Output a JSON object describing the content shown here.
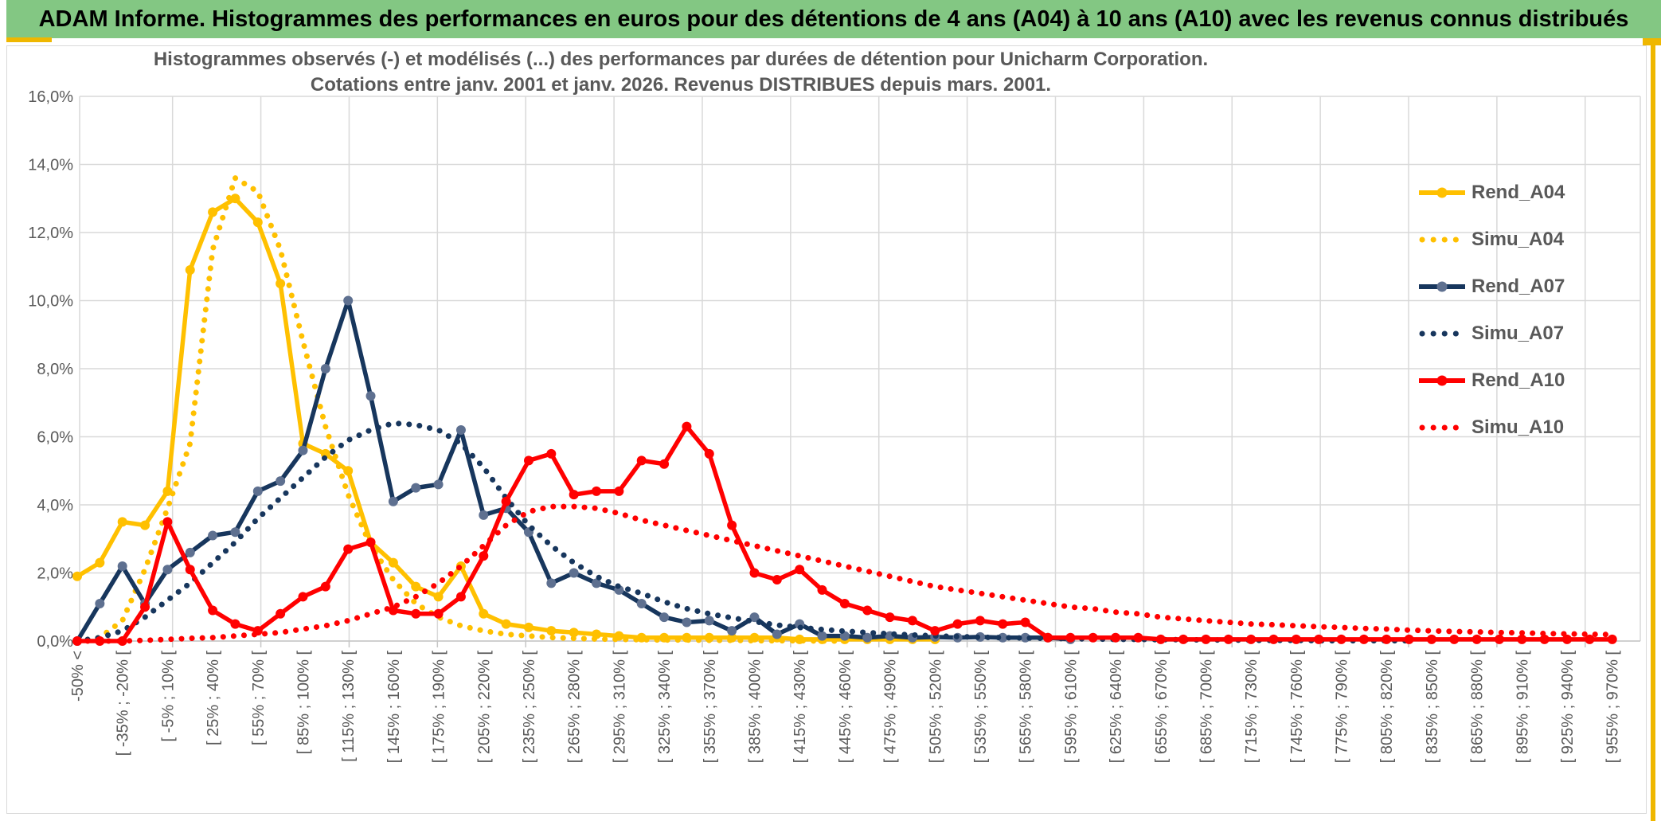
{
  "header": {
    "title": "ADAM Informe. Histogrammes des performances en euros pour des détentions de 4 ans (A04) à 10 ans (A10) avec les revenus connus distribués"
  },
  "chart": {
    "title_line1": "Histogrammes observés (-) et modélisés (...) des performances par durées de détention pour Unicharm Corporation.",
    "title_line2": "Cotations entre janv. 2001 et janv. 2026. Revenus DISTRIBUES depuis mars. 2001."
  },
  "colors": {
    "header_green": "#83C783",
    "accent_gold": "#EFB700",
    "grid": "#D9D9D9",
    "axis_line": "#C6C6C6",
    "axis_text": "#595959",
    "yellow": "#FFC000",
    "navy": "#17365D",
    "navy_marker": "#5E7090",
    "red": "#FF0000"
  },
  "chart_data": {
    "type": "line",
    "title": "Histogrammes observés (-) et modélisés (...) des performances par durées de détention pour Unicharm Corporation. Cotations entre janv. 2001 et janv. 2026. Revenus DISTRIBUES depuis mars. 2001.",
    "xlabel": "",
    "ylabel": "",
    "ylim": [
      0,
      16
    ],
    "ytick_step": 2,
    "yticks": [
      "0,0%",
      "2,0%",
      "4,0%",
      "6,0%",
      "8,0%",
      "10,0%",
      "12,0%",
      "14,0%",
      "16,0%"
    ],
    "grid": true,
    "legend_position": "right-inside",
    "n_points": 69,
    "x_label_every": 2,
    "categories": [
      "-50% <",
      "[ -35% ; -20% [",
      "[ -5% ; 10% [",
      "[ 25% ; 40% [",
      "[ 55% ; 70% [",
      "[ 85% ; 100% [",
      "[ 115% ; 130% [",
      "[ 145% ; 160% [",
      "[ 175% ; 190% [",
      "[ 205% ; 220% [",
      "[ 235% ; 250% [",
      "[ 265% ; 280% [",
      "[ 295% ; 310% [",
      "[ 325% ; 340% [",
      "[ 355% ; 370% [",
      "[ 385% ; 400% [",
      "[ 415% ; 430% [",
      "[ 445% ; 460% [",
      "[ 475% ; 490% [",
      "[ 505% ; 520% [",
      "[ 535% ; 550% [",
      "[ 565% ; 580% [",
      "[ 595% ; 610% [",
      "[ 625% ; 640% [",
      "[ 655% ; 670% [",
      "[ 685% ; 700% [",
      "[ 715% ; 730% [",
      "[ 745% ; 760% [",
      "[ 775% ; 790% [",
      "[ 805% ; 820% [",
      "[ 835% ; 850% [",
      "[ 865% ; 880% [",
      "[ 895% ; 910% [",
      "[ 925% ; 940% [",
      "[ 955% ; 970% ["
    ],
    "series": [
      {
        "name": "Rend_A04",
        "style": "solid",
        "color": "#FFC000",
        "marker_color": "#FFC000",
        "values": [
          1.9,
          2.3,
          3.5,
          3.4,
          4.4,
          10.9,
          12.6,
          13.0,
          12.3,
          10.5,
          5.8,
          5.5,
          5.0,
          2.9,
          2.3,
          1.6,
          1.3,
          2.2,
          0.8,
          0.5,
          0.4,
          0.3,
          0.25,
          0.2,
          0.15,
          0.1,
          0.1,
          0.1,
          0.1,
          0.1,
          0.1,
          0.1,
          0.05,
          0.05,
          0.05,
          0.05,
          0.05,
          0.05,
          0.05,
          null,
          null,
          null,
          null,
          null,
          null,
          null,
          null,
          null,
          null,
          null,
          null,
          null,
          null,
          null,
          null,
          null,
          null,
          null,
          null,
          null,
          null,
          null,
          null,
          null,
          null,
          null,
          null,
          null,
          null
        ]
      },
      {
        "name": "Simu_A04",
        "style": "dotted",
        "color": "#FFC000",
        "values": [
          0.0,
          0.1,
          0.6,
          2.1,
          3.9,
          5.8,
          11.5,
          13.6,
          13.2,
          11.5,
          8.8,
          6.3,
          4.3,
          2.8,
          1.8,
          1.1,
          0.7,
          0.45,
          0.3,
          0.2,
          0.15,
          0.1,
          0.08,
          0.06,
          0.05,
          0.04,
          0.03,
          0.03,
          0.02,
          0.02,
          0.01,
          0.01,
          0.01,
          0.0,
          0.0,
          null,
          null,
          null,
          null,
          null,
          null,
          null,
          null,
          null,
          null,
          null,
          null,
          null,
          null,
          null,
          null,
          null,
          null,
          null,
          null,
          null,
          null,
          null,
          null,
          null,
          null,
          null,
          null,
          null,
          null,
          null,
          null,
          null,
          null
        ]
      },
      {
        "name": "Rend_A07",
        "style": "solid",
        "color": "#17365D",
        "marker_color": "#5E7090",
        "values": [
          0.0,
          1.1,
          2.2,
          1.1,
          2.1,
          2.6,
          3.1,
          3.2,
          4.4,
          4.7,
          5.6,
          8.0,
          10.0,
          7.2,
          4.1,
          4.5,
          4.6,
          6.2,
          3.7,
          3.9,
          3.2,
          1.7,
          2.0,
          1.7,
          1.5,
          1.1,
          0.7,
          0.55,
          0.6,
          0.3,
          0.7,
          0.2,
          0.5,
          0.15,
          0.15,
          0.1,
          0.15,
          0.1,
          0.12,
          0.1,
          0.12,
          0.1,
          0.1,
          0.1,
          0.05,
          null,
          null,
          null,
          null,
          null,
          null,
          null,
          null,
          null,
          null,
          null,
          null,
          null,
          null,
          null,
          null,
          null,
          null,
          null,
          null,
          null,
          null,
          null,
          null
        ]
      },
      {
        "name": "Simu_A07",
        "style": "dotted",
        "color": "#17365D",
        "values": [
          0.0,
          0.1,
          0.3,
          0.7,
          1.2,
          1.7,
          2.3,
          2.9,
          3.6,
          4.2,
          4.8,
          5.4,
          5.9,
          6.2,
          6.4,
          6.35,
          6.2,
          5.8,
          5.1,
          4.2,
          3.4,
          2.8,
          2.3,
          1.9,
          1.6,
          1.4,
          1.15,
          0.95,
          0.8,
          0.68,
          0.57,
          0.47,
          0.4,
          0.34,
          0.29,
          0.25,
          0.21,
          0.18,
          0.15,
          0.13,
          0.11,
          0.1,
          0.09,
          0.08,
          0.07,
          0.06,
          0.05,
          0.05,
          0.04,
          0.04,
          0.03,
          0.03,
          0.02,
          0.02,
          0.02,
          0.01,
          0.01,
          0.01,
          0.01,
          0.01,
          null,
          null,
          null,
          null,
          null,
          null,
          null,
          null,
          null
        ]
      },
      {
        "name": "Rend_A10",
        "style": "solid",
        "color": "#FF0000",
        "marker_color": "#FF0000",
        "values": [
          0.0,
          0.0,
          0.0,
          1.0,
          3.5,
          2.1,
          0.9,
          0.5,
          0.3,
          0.8,
          1.3,
          1.6,
          2.7,
          2.9,
          0.9,
          0.8,
          0.8,
          1.3,
          2.5,
          4.1,
          5.3,
          5.5,
          4.3,
          4.4,
          4.4,
          5.3,
          5.2,
          6.3,
          5.5,
          3.4,
          2.0,
          1.8,
          2.1,
          1.5,
          1.1,
          0.9,
          0.7,
          0.6,
          0.3,
          0.5,
          0.6,
          0.5,
          0.55,
          0.1,
          0.1,
          0.1,
          0.1,
          0.1,
          0.05,
          0.05,
          0.05,
          0.05,
          0.05,
          0.05,
          0.05,
          0.05,
          0.05,
          0.05,
          0.05,
          0.05,
          0.05,
          0.05,
          0.05,
          0.05,
          0.05,
          0.05,
          0.05,
          0.05,
          0.05
        ]
      },
      {
        "name": "Simu_A10",
        "style": "dotted",
        "color": "#FF0000",
        "values": [
          0.0,
          0.0,
          0.0,
          0.02,
          0.05,
          0.08,
          0.1,
          0.15,
          0.2,
          0.25,
          0.35,
          0.45,
          0.6,
          0.8,
          1.0,
          1.3,
          1.7,
          2.2,
          2.8,
          3.4,
          3.8,
          3.95,
          3.95,
          3.9,
          3.75,
          3.55,
          3.4,
          3.25,
          3.1,
          2.95,
          2.8,
          2.65,
          2.5,
          2.35,
          2.2,
          2.05,
          1.9,
          1.75,
          1.6,
          1.5,
          1.4,
          1.3,
          1.2,
          1.1,
          1.0,
          0.95,
          0.85,
          0.8,
          0.7,
          0.65,
          0.6,
          0.55,
          0.5,
          0.48,
          0.45,
          0.42,
          0.4,
          0.37,
          0.35,
          0.32,
          0.3,
          0.28,
          0.27,
          0.25,
          0.24,
          0.22,
          0.21,
          0.2,
          0.19
        ]
      }
    ]
  }
}
